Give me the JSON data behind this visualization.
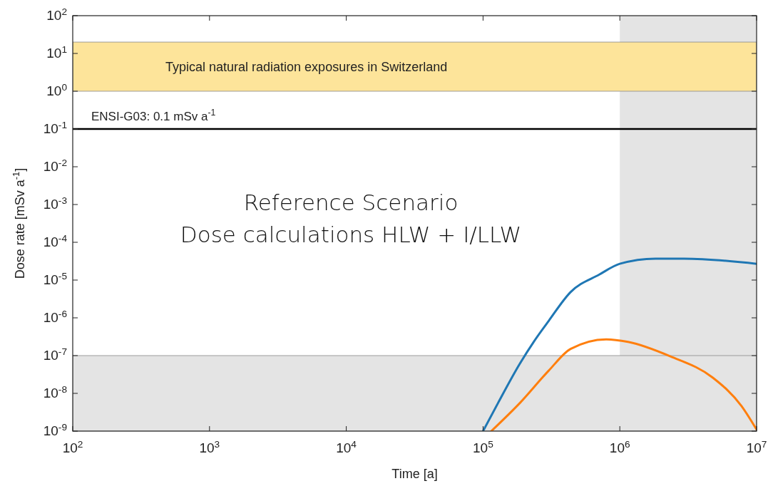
{
  "chart_data": {
    "type": "line",
    "xlabel": "Time [a]",
    "ylabel": "Dose rate [mSv a$^{-1}$]",
    "log": "xy",
    "xlim": [
      100,
      10000000
    ],
    "ylim": [
      1e-09,
      100
    ],
    "xticks": [
      {
        "value": 100,
        "label": "10$^{2}$"
      },
      {
        "value": 1000,
        "label": "10$^{3}$"
      },
      {
        "value": 10000,
        "label": "10$^{4}$"
      },
      {
        "value": 100000,
        "label": "10$^{5}$"
      },
      {
        "value": 1000000,
        "label": "10$^{6}$"
      },
      {
        "value": 10000000,
        "label": "10$^{7}$"
      }
    ],
    "yticks": [
      {
        "value": 1e-09,
        "label": "10$^{-9}$"
      },
      {
        "value": 1e-08,
        "label": "10$^{-8}$"
      },
      {
        "value": 1e-07,
        "label": "10$^{-7}$"
      },
      {
        "value": 1e-06,
        "label": "10$^{-6}$"
      },
      {
        "value": 1e-05,
        "label": "10$^{-5}$"
      },
      {
        "value": 0.0001,
        "label": "10$^{-4}$"
      },
      {
        "value": 0.001,
        "label": "10$^{-3}$"
      },
      {
        "value": 0.01,
        "label": "10$^{-2}$"
      },
      {
        "value": 0.1,
        "label": "10$^{-1}$"
      },
      {
        "value": 1,
        "label": "10$^{0}$"
      },
      {
        "value": 10,
        "label": "10$^{1}$"
      },
      {
        "value": 100,
        "label": "10$^{2}$"
      }
    ],
    "bands": [
      {
        "axis": "x",
        "from": 1000000,
        "to": 10000000,
        "color": "#e4e4e4"
      },
      {
        "axis": "y",
        "from": 1e-09,
        "to": 1e-07,
        "color": "#e4e4e4"
      },
      {
        "axis": "y",
        "from": 1,
        "to": 20,
        "color": "#fde49a",
        "label": "Typical natural radiation exposures in Switzerland"
      }
    ],
    "ref_lines": [
      {
        "axis": "y",
        "value": 0.1,
        "label": "ENSI-G03: 0.1 mSv a$^{-1}$",
        "color": "#000000"
      }
    ],
    "annotations": [
      "Reference Scenario",
      "Dose calculations HLW + I/LLW"
    ],
    "series": [
      {
        "color": "#1f77b4",
        "x": [
          100000,
          128825,
          186209,
          234423,
          301995,
          436516,
          707946,
          1000000,
          1819701,
          2951209,
          10000000
        ],
        "values": [
          1e-09,
          5.6e-09,
          6.2e-08,
          2.3e-07,
          8.3e-07,
          4.8e-06,
          1.4e-05,
          2.7e-05,
          3.7e-05,
          3.7e-05,
          2.7e-05
        ]
      },
      {
        "color": "#ff7f0e",
        "x": [
          114815,
          186209,
          301995,
          436516,
          794328,
          1148154,
          2344229,
          4786301,
          7762471,
          10000000
        ],
        "values": [
          1e-09,
          5.6e-09,
          4e-08,
          1.5e-07,
          2.7e-07,
          2.3e-07,
          9.5e-08,
          2.6e-08,
          4.6e-09,
          1.1e-09
        ]
      }
    ]
  }
}
